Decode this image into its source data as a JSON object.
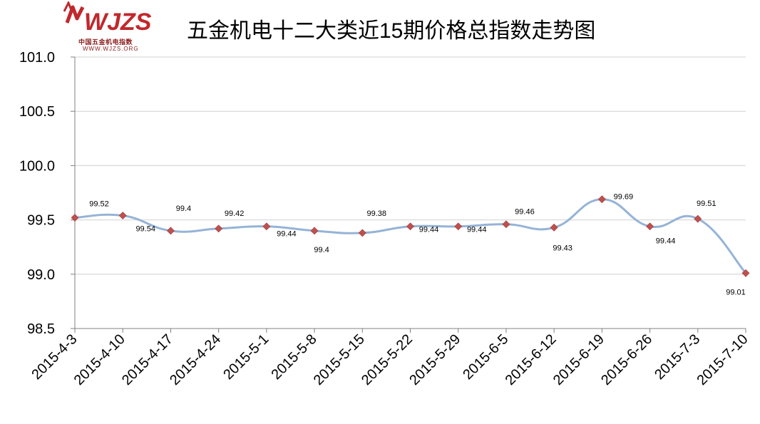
{
  "logo": {
    "mark": "WJZS",
    "subtitle": "中国五金机电指数",
    "url": "WWW.WJZS.ORG",
    "color": "#c0282d"
  },
  "chart_data": {
    "type": "line",
    "title": "五金机电十二大类近15期价格总指数走势图",
    "categories": [
      "2015-4-3",
      "2015-4-10",
      "2015-4-17",
      "2015-4-24",
      "2015-5-1",
      "2015-5-8",
      "2015-5-15",
      "2015-5-22",
      "2015-5-29",
      "2015-6-5",
      "2015-6-12",
      "2015-6-19",
      "2015-6-26",
      "2015-7-3",
      "2015-7-10"
    ],
    "series": [
      {
        "values": [
          99.52,
          99.54,
          99.4,
          99.42,
          99.44,
          99.4,
          99.38,
          99.44,
          99.44,
          99.46,
          99.43,
          99.69,
          99.44,
          99.51,
          99.01
        ],
        "labels": [
          "99.52",
          "99.54",
          "99.4",
          "99.42",
          "99.44",
          "99.4",
          "99.38",
          "99.44",
          "99.44",
          "99.46",
          "99.43",
          "99.69",
          "99.44",
          "99.51",
          "99.01"
        ],
        "line_color": "#95b3d7",
        "marker_color": "#c0504d"
      }
    ],
    "ylim": [
      98.5,
      101.0
    ],
    "yticks": [
      "98.5",
      "99.0",
      "99.5",
      "100.0",
      "100.5",
      "101.0"
    ],
    "xlabel": "",
    "ylabel": "",
    "grid": true,
    "smooth": true
  }
}
